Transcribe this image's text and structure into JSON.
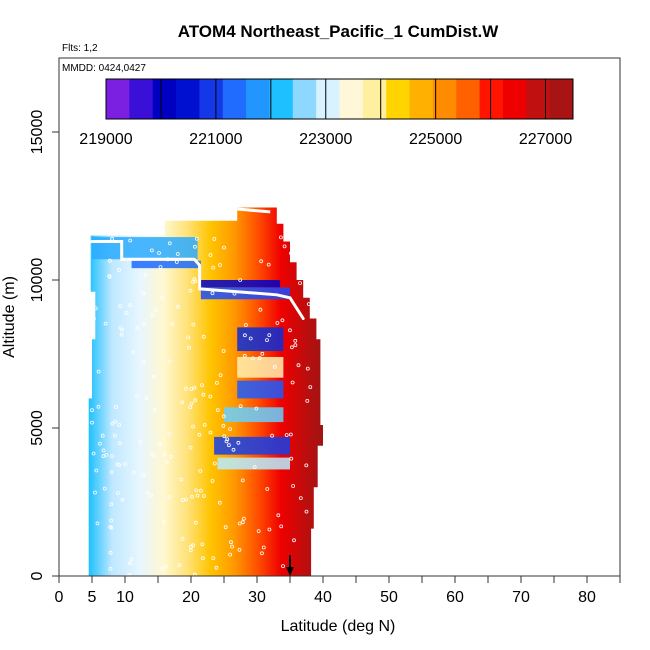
{
  "chart_data": {
    "type": "heatmap",
    "title": "ATOM4 Northeast_Pacific_1 CumDist.W",
    "flights_label": "Flts: 1,2",
    "dates_label": "MMDD: 0424,0427",
    "xlabel": "Latitude (deg N)",
    "ylabel": "Altitude (m)",
    "xlim": [
      0,
      85
    ],
    "ylim": [
      0,
      17500
    ],
    "x_ticks": [
      0,
      5,
      10,
      20,
      30,
      40,
      50,
      60,
      70,
      80
    ],
    "y_ticks": [
      0,
      5000,
      10000,
      15000
    ],
    "grid": false,
    "colorbar": {
      "placement": "top-inside",
      "range": [
        219000,
        227500
      ],
      "tick_values": [
        219000,
        221000,
        223000,
        225000,
        227000
      ],
      "colors": [
        "#7b1fe0",
        "#0000c8",
        "#0a2fd8",
        "#2196ff",
        "#1ec0ff",
        "#c8f0ff",
        "#fff5c0",
        "#ffd400",
        "#ff8c00",
        "#ff0000",
        "#a81414"
      ]
    },
    "data_extent": {
      "latitude": [
        4.5,
        40
      ],
      "altitude": [
        0,
        12500
      ]
    },
    "marker": {
      "type": "arrow",
      "latitude": 35,
      "altitude_top": 700
    }
  }
}
